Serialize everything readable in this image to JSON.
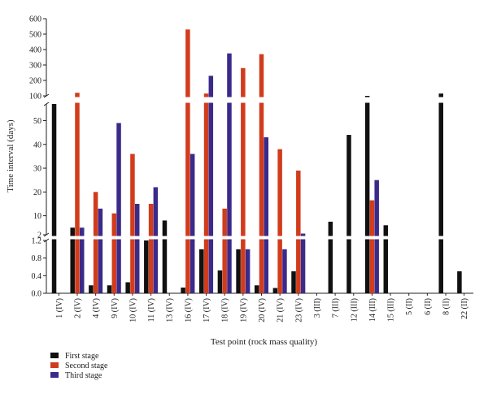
{
  "chart_data": {
    "type": "bar",
    "xlabel": "Test point (rock mass quality)",
    "ylabel": "Time interval (days)",
    "categories": [
      "1 (IV)",
      "2 (IV)",
      "4 (IV)",
      "9 (IV)",
      "10 (IV)",
      "11 (IV)",
      "13 (IV)",
      "16 (IV)",
      "17 (IV)",
      "18 (IV)",
      "19 (IV)",
      "20 (IV)",
      "21 (IV)",
      "23 (IV)",
      "3 (III)",
      "7 (III)",
      "12 (III)",
      "14 (III)",
      "15 (III)",
      "5 (II)",
      "6 (II)",
      "8 (II)",
      "22 (II)"
    ],
    "series": [
      {
        "name": "First stage",
        "color": "#111111",
        "values": [
          57,
          5,
          0.18,
          0.18,
          0.25,
          1.2,
          8,
          0.13,
          1.0,
          0.52,
          1.0,
          0.18,
          0.12,
          0.5,
          null,
          7.5,
          44,
          100,
          6,
          null,
          null,
          115,
          0.5
        ]
      },
      {
        "name": "Second stage",
        "color": "#d13c1c",
        "values": [
          null,
          120,
          20,
          11,
          36,
          15,
          null,
          530,
          115,
          13,
          280,
          370,
          38,
          29,
          null,
          null,
          null,
          16.5,
          null,
          null,
          null,
          null,
          null
        ]
      },
      {
        "name": "Third stage",
        "color": "#3b2a8a",
        "values": [
          null,
          5,
          13,
          49,
          15,
          22,
          null,
          36,
          230,
          375,
          1.0,
          43,
          1.0,
          2.5,
          null,
          null,
          null,
          25,
          null,
          null,
          null,
          null,
          null
        ]
      }
    ],
    "y_segments": [
      {
        "range": [
          0,
          1.2
        ],
        "ticks": [
          "0.0",
          "0.4",
          "0.8",
          "1.2"
        ]
      },
      {
        "range": [
          2,
          57
        ],
        "ticks": [
          "2",
          "10",
          "20",
          "30",
          "40",
          "50"
        ]
      },
      {
        "range": [
          100,
          600
        ],
        "ticks": [
          "100",
          "200",
          "300",
          "400",
          "500",
          "600"
        ]
      }
    ],
    "legend": "bottom-left",
    "grid": false
  }
}
